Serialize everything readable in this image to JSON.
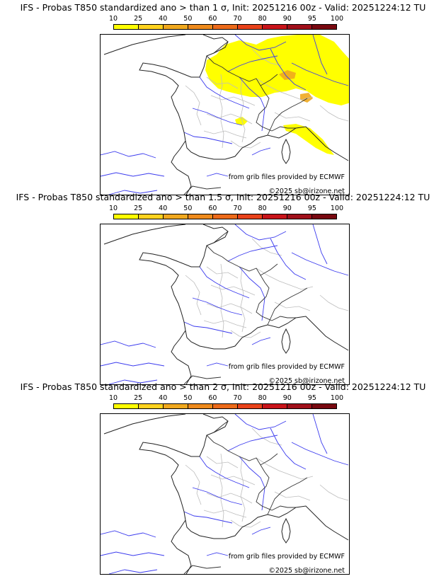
{
  "colorbar": {
    "ticks": [
      "10",
      "25",
      "40",
      "50",
      "60",
      "70",
      "80",
      "90",
      "95",
      "100"
    ],
    "colors": [
      "#ffff00",
      "#ffd21e",
      "#f0a81e",
      "#ee8a1c",
      "#ec6a1a",
      "#e8421a",
      "#c8141a",
      "#a0101a",
      "#780810"
    ]
  },
  "panels": [
    {
      "title": "IFS - Probas T850  standardized ano > than 1 σ, Init: 20251216 00z - Valid: 20251224:12 TU",
      "credit_source": "from grib files provided by ECMWF",
      "credit_copyright": "©2025 sb@irizone.net",
      "has_anomaly_area": true
    },
    {
      "title": "IFS - Probas T850  standardized ano > than 1.5 σ, Init: 20251216 00z - Valid: 20251224:12 TU",
      "credit_source": "from grib files provided by ECMWF",
      "credit_copyright": "©2025 sb@irizone.net",
      "has_anomaly_area": false
    },
    {
      "title": "IFS - Probas T850  standardized ano > than 2 σ, Init: 20251216 00z - Valid: 20251224:12 TU",
      "credit_source": "from grib files provided by ECMWF",
      "credit_copyright": "©2025 sb@irizone.net",
      "has_anomaly_area": false
    }
  ]
}
